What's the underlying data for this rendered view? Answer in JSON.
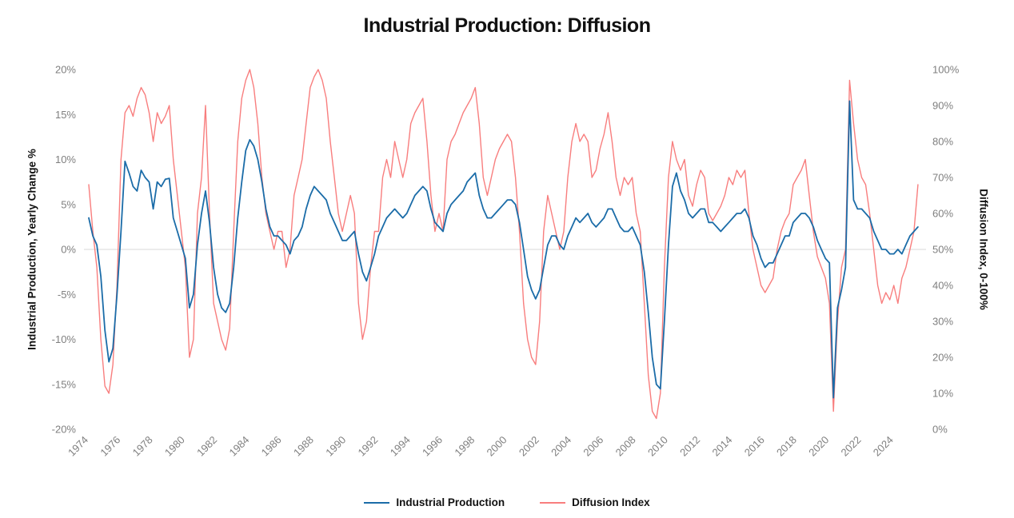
{
  "page": {
    "background": "#ffffff"
  },
  "chart_data": {
    "type": "line",
    "title": "Industrial Production: Diffusion",
    "grid": "zero-line-only",
    "zero_line_color": "#d9d9d9",
    "legend_position": "bottom-center",
    "left_axis": {
      "label": "Industrial Production, Yearly Change %",
      "range": [
        -20,
        20
      ],
      "ticks": [
        "20%",
        "15%",
        "10%",
        "5%",
        "0%",
        "-5%",
        "-10%",
        "-15%",
        "-20%"
      ]
    },
    "right_axis": {
      "label": "Diffusion Index, 0-100%",
      "range": [
        0,
        100
      ],
      "ticks": [
        "100%",
        "90%",
        "80%",
        "70%",
        "60%",
        "50%",
        "40%",
        "30%",
        "20%",
        "10%",
        "0%"
      ]
    },
    "x_axis": {
      "start_year": 1974,
      "step_years": 0.25,
      "range": [
        1974,
        2025.5
      ],
      "tick_years": [
        1974,
        1976,
        1978,
        1980,
        1982,
        1984,
        1986,
        1988,
        1990,
        1992,
        1994,
        1996,
        1998,
        2000,
        2002,
        2004,
        2006,
        2008,
        2010,
        2012,
        2014,
        2016,
        2018,
        2020,
        2022,
        2024
      ]
    },
    "series": [
      {
        "name": "Industrial Production",
        "axis": "left",
        "color": "#1b6ca8",
        "values": [
          3.5,
          1.5,
          0.5,
          -3.0,
          -9.0,
          -12.5,
          -11.0,
          -5.0,
          2.0,
          9.8,
          8.5,
          7.0,
          6.5,
          8.8,
          8.0,
          7.5,
          4.5,
          7.5,
          7.0,
          7.8,
          7.9,
          3.5,
          2.0,
          0.5,
          -1.0,
          -6.5,
          -5.0,
          0.5,
          4.0,
          6.5,
          3.0,
          -2.0,
          -5.0,
          -6.5,
          -7.0,
          -6.0,
          -2.0,
          3.5,
          7.5,
          11.0,
          12.2,
          11.5,
          10.0,
          7.5,
          4.5,
          2.5,
          1.5,
          1.5,
          1.0,
          0.5,
          -0.5,
          1.0,
          1.5,
          2.5,
          4.5,
          6.0,
          7.0,
          6.5,
          6.0,
          5.5,
          4.0,
          3.0,
          2.0,
          1.0,
          1.0,
          1.5,
          2.0,
          -0.5,
          -2.5,
          -3.5,
          -2.0,
          -0.5,
          1.5,
          2.5,
          3.5,
          4.0,
          4.5,
          4.0,
          3.5,
          4.0,
          5.0,
          6.0,
          6.5,
          7.0,
          6.5,
          4.5,
          3.0,
          2.5,
          2.0,
          4.0,
          5.0,
          5.5,
          6.0,
          6.5,
          7.5,
          8.0,
          8.5,
          6.0,
          4.5,
          3.5,
          3.5,
          4.0,
          4.5,
          5.0,
          5.5,
          5.5,
          5.0,
          3.0,
          0.0,
          -3.0,
          -4.5,
          -5.5,
          -4.5,
          -2.0,
          0.5,
          1.5,
          1.5,
          0.5,
          0.0,
          1.5,
          2.5,
          3.5,
          3.0,
          3.5,
          4.0,
          3.0,
          2.5,
          3.0,
          3.5,
          4.5,
          4.5,
          3.5,
          2.5,
          2.0,
          2.0,
          2.5,
          1.5,
          0.5,
          -2.5,
          -7.0,
          -12.0,
          -15.0,
          -15.5,
          -8.0,
          0.5,
          7.0,
          8.5,
          6.5,
          5.5,
          4.0,
          3.5,
          4.0,
          4.5,
          4.5,
          3.0,
          3.0,
          2.5,
          2.0,
          2.5,
          3.0,
          3.5,
          4.0,
          4.0,
          4.5,
          3.5,
          1.5,
          0.5,
          -1.0,
          -2.0,
          -1.5,
          -1.5,
          -0.5,
          0.5,
          1.5,
          1.5,
          3.0,
          3.5,
          4.0,
          4.0,
          3.5,
          2.5,
          1.0,
          0.0,
          -1.0,
          -1.5,
          -16.5,
          -6.5,
          -4.5,
          -2.0,
          16.5,
          5.5,
          4.5,
          4.5,
          4.0,
          3.5,
          2.0,
          1.0,
          0.0,
          0.0,
          -0.5,
          -0.5,
          0.0,
          -0.5,
          0.5,
          1.5,
          2.0,
          2.5
        ]
      },
      {
        "name": "Diffusion Index",
        "axis": "right",
        "color": "#f87e7e",
        "values": [
          68,
          55,
          45,
          25,
          12,
          10,
          18,
          40,
          75,
          88,
          90,
          87,
          92,
          95,
          93,
          88,
          80,
          88,
          85,
          87,
          90,
          75,
          65,
          55,
          45,
          20,
          25,
          60,
          70,
          90,
          60,
          35,
          30,
          25,
          22,
          28,
          55,
          80,
          92,
          97,
          100,
          95,
          85,
          70,
          60,
          55,
          50,
          55,
          55,
          45,
          50,
          65,
          70,
          75,
          85,
          95,
          98,
          100,
          97,
          92,
          80,
          70,
          60,
          55,
          60,
          65,
          60,
          35,
          25,
          30,
          45,
          55,
          55,
          70,
          75,
          70,
          80,
          75,
          70,
          75,
          85,
          88,
          90,
          92,
          80,
          65,
          55,
          60,
          55,
          75,
          80,
          82,
          85,
          88,
          90,
          92,
          95,
          85,
          70,
          65,
          70,
          75,
          78,
          80,
          82,
          80,
          70,
          55,
          35,
          25,
          20,
          18,
          30,
          55,
          65,
          60,
          55,
          50,
          55,
          70,
          80,
          85,
          80,
          82,
          80,
          70,
          72,
          78,
          82,
          88,
          80,
          70,
          65,
          70,
          68,
          70,
          60,
          55,
          35,
          15,
          5,
          3,
          10,
          45,
          70,
          80,
          75,
          72,
          75,
          65,
          62,
          68,
          72,
          70,
          60,
          58,
          60,
          62,
          65,
          70,
          68,
          72,
          70,
          72,
          60,
          50,
          45,
          40,
          38,
          40,
          42,
          50,
          55,
          58,
          60,
          68,
          70,
          72,
          75,
          65,
          55,
          48,
          45,
          42,
          35,
          5,
          30,
          45,
          50,
          97,
          85,
          75,
          70,
          68,
          60,
          50,
          40,
          35,
          38,
          36,
          40,
          35,
          42,
          45,
          50,
          55,
          68
        ]
      }
    ]
  }
}
